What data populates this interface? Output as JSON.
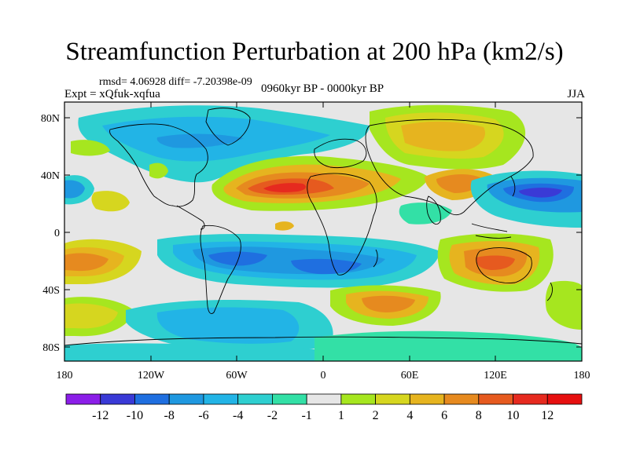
{
  "title": "Streamfunction Perturbation at 200 hPa (km2/s)",
  "stats": "rmsd= 4.06928 diff= -7.20398e-09",
  "experiment": "Expt = xQfuk-xqfua",
  "period": "0960kyr BP - 0000kyr BP",
  "season": "JJA",
  "lat_ticks": [
    "80N",
    "40N",
    "0",
    "40S",
    "80S"
  ],
  "lon_ticks": [
    "180",
    "120W",
    "60W",
    "0",
    "60E",
    "120E",
    "180"
  ],
  "colorbar": {
    "labels": [
      "-12",
      "-10",
      "-8",
      "-6",
      "-4",
      "-2",
      "-1",
      "1",
      "2",
      "4",
      "6",
      "8",
      "10",
      "12"
    ],
    "colors": [
      "#8b1ee8",
      "#3a3ad6",
      "#1f6fe0",
      "#1f98e0",
      "#22b4e6",
      "#2ecfd0",
      "#33e0a6",
      "#e6e6e6",
      "#a6e61f",
      "#d6d61f",
      "#e6b41f",
      "#e68a1f",
      "#e65a1f",
      "#e62a1f",
      "#e60f0f"
    ]
  }
}
